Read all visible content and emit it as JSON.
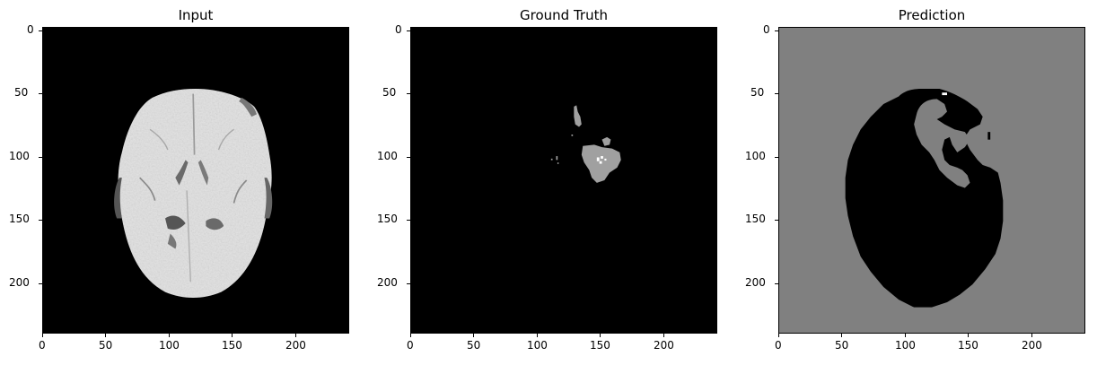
{
  "figure": {
    "background": "#ffffff",
    "panels": [
      {
        "id": "input",
        "title": "Input",
        "background": "#000000",
        "kind": "mri-brain",
        "x_ticks": [
          "0",
          "50",
          "100",
          "150",
          "200"
        ],
        "y_ticks": [
          "0",
          "50",
          "100",
          "150",
          "200"
        ]
      },
      {
        "id": "ground_truth",
        "title": "Ground Truth",
        "background": "#000000",
        "kind": "mask-ground-truth",
        "x_ticks": [
          "0",
          "50",
          "100",
          "150",
          "200"
        ],
        "y_ticks": [
          "0",
          "50",
          "100",
          "150",
          "200"
        ]
      },
      {
        "id": "prediction",
        "title": "Prediction",
        "background": "#808080",
        "kind": "mask-prediction",
        "x_ticks": [
          "0",
          "50",
          "100",
          "150",
          "200"
        ],
        "y_ticks": [
          "0",
          "50",
          "100",
          "150",
          "200"
        ]
      }
    ],
    "colors": {
      "brain": "#e8e8e8",
      "mask_gray": "#a0a0a0",
      "mask_white": "#ffffff",
      "pred_gray": "#808080",
      "black": "#000000"
    }
  }
}
